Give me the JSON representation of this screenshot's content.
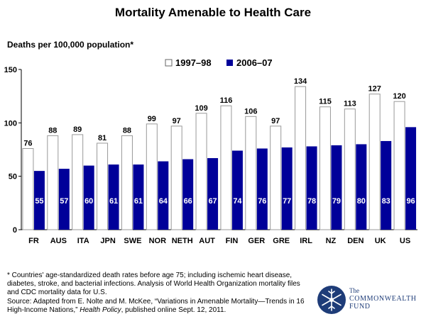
{
  "title": "Mortality Amenable to Health Care",
  "footnote": {
    "line1": "* Countries' age-standardized death rates before age 75; including ischemic heart disease, diabetes, stroke, and bacterial infections. Analysis of World Health Organization mortality files and CDC mortality data for U.S.",
    "source_prefix": "Source: Adapted from E. Nolte and M. McKee, “Variations in Amenable Mortality—Trends in 16 High-Income Nations,” ",
    "source_journal": "Health Policy",
    "source_suffix": ", published online Sept. 12, 2011."
  },
  "logo": {
    "line1": "The",
    "line2": "COMMONWEALTH",
    "line3": "FUND",
    "icon": "snowflake-seal-icon",
    "color": "#1e3c78"
  },
  "chart_data": {
    "type": "bar",
    "title": "Mortality Amenable to Health Care",
    "ylabel": "Deaths per 100,000 population*",
    "xlabel": "",
    "ylim": [
      0,
      150
    ],
    "yticks": [
      0,
      50,
      100,
      150
    ],
    "grid": false,
    "legend_position": "top-center",
    "categories": [
      "FR",
      "AUS",
      "ITA",
      "JPN",
      "SWE",
      "NOR",
      "NETH",
      "AUT",
      "FIN",
      "GER",
      "GRE",
      "IRL",
      "NZ",
      "DEN",
      "UK",
      "US"
    ],
    "series": [
      {
        "name": "1997–98",
        "color": "#ffffff",
        "values": [
          76,
          88,
          89,
          81,
          88,
          99,
          97,
          109,
          116,
          106,
          97,
          134,
          115,
          113,
          127,
          120
        ]
      },
      {
        "name": "2006–07",
        "color": "#000099",
        "values": [
          55,
          57,
          60,
          61,
          61,
          64,
          66,
          67,
          74,
          76,
          77,
          78,
          79,
          80,
          83,
          96
        ]
      }
    ]
  }
}
